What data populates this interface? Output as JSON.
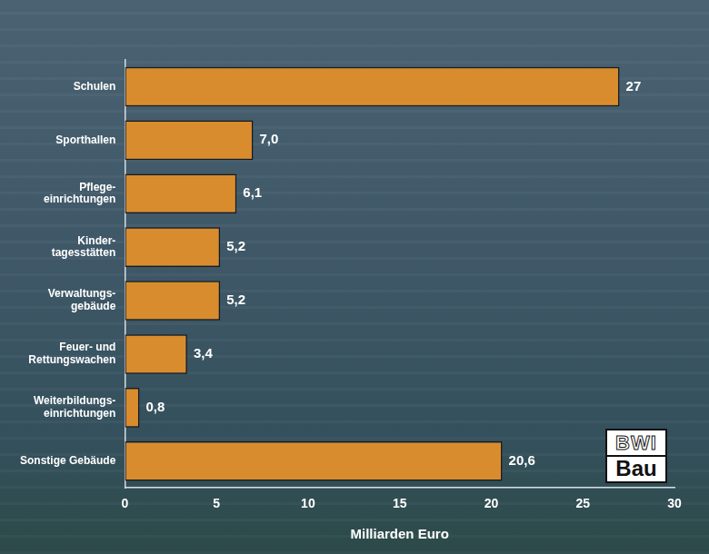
{
  "chart_data": {
    "type": "bar",
    "orientation": "horizontal",
    "categories": [
      "Schulen",
      "Sporthallen",
      "Pflege-\neinrichtungen",
      "Kinder-\ntagesstätten",
      "Verwaltungs-\ngebäude",
      "Feuer- und\nRettungswachen",
      "Weiterbildungs-\neinrichtungen",
      "Sonstige Gebäude"
    ],
    "values": [
      27,
      7.0,
      6.1,
      5.2,
      5.2,
      3.4,
      0.8,
      20.6
    ],
    "value_labels": [
      "27",
      "7,0",
      "6,1",
      "5,2",
      "5,2",
      "3,4",
      "0,8",
      "20,6"
    ],
    "data_labels": true,
    "color": "#d98c2e",
    "xlim": [
      0,
      30
    ],
    "xticks": [
      0,
      5,
      10,
      15,
      20,
      25,
      30
    ],
    "x_label": "Milliarden Euro",
    "grid": false,
    "annotations": [
      "BWI",
      "Bau"
    ]
  }
}
